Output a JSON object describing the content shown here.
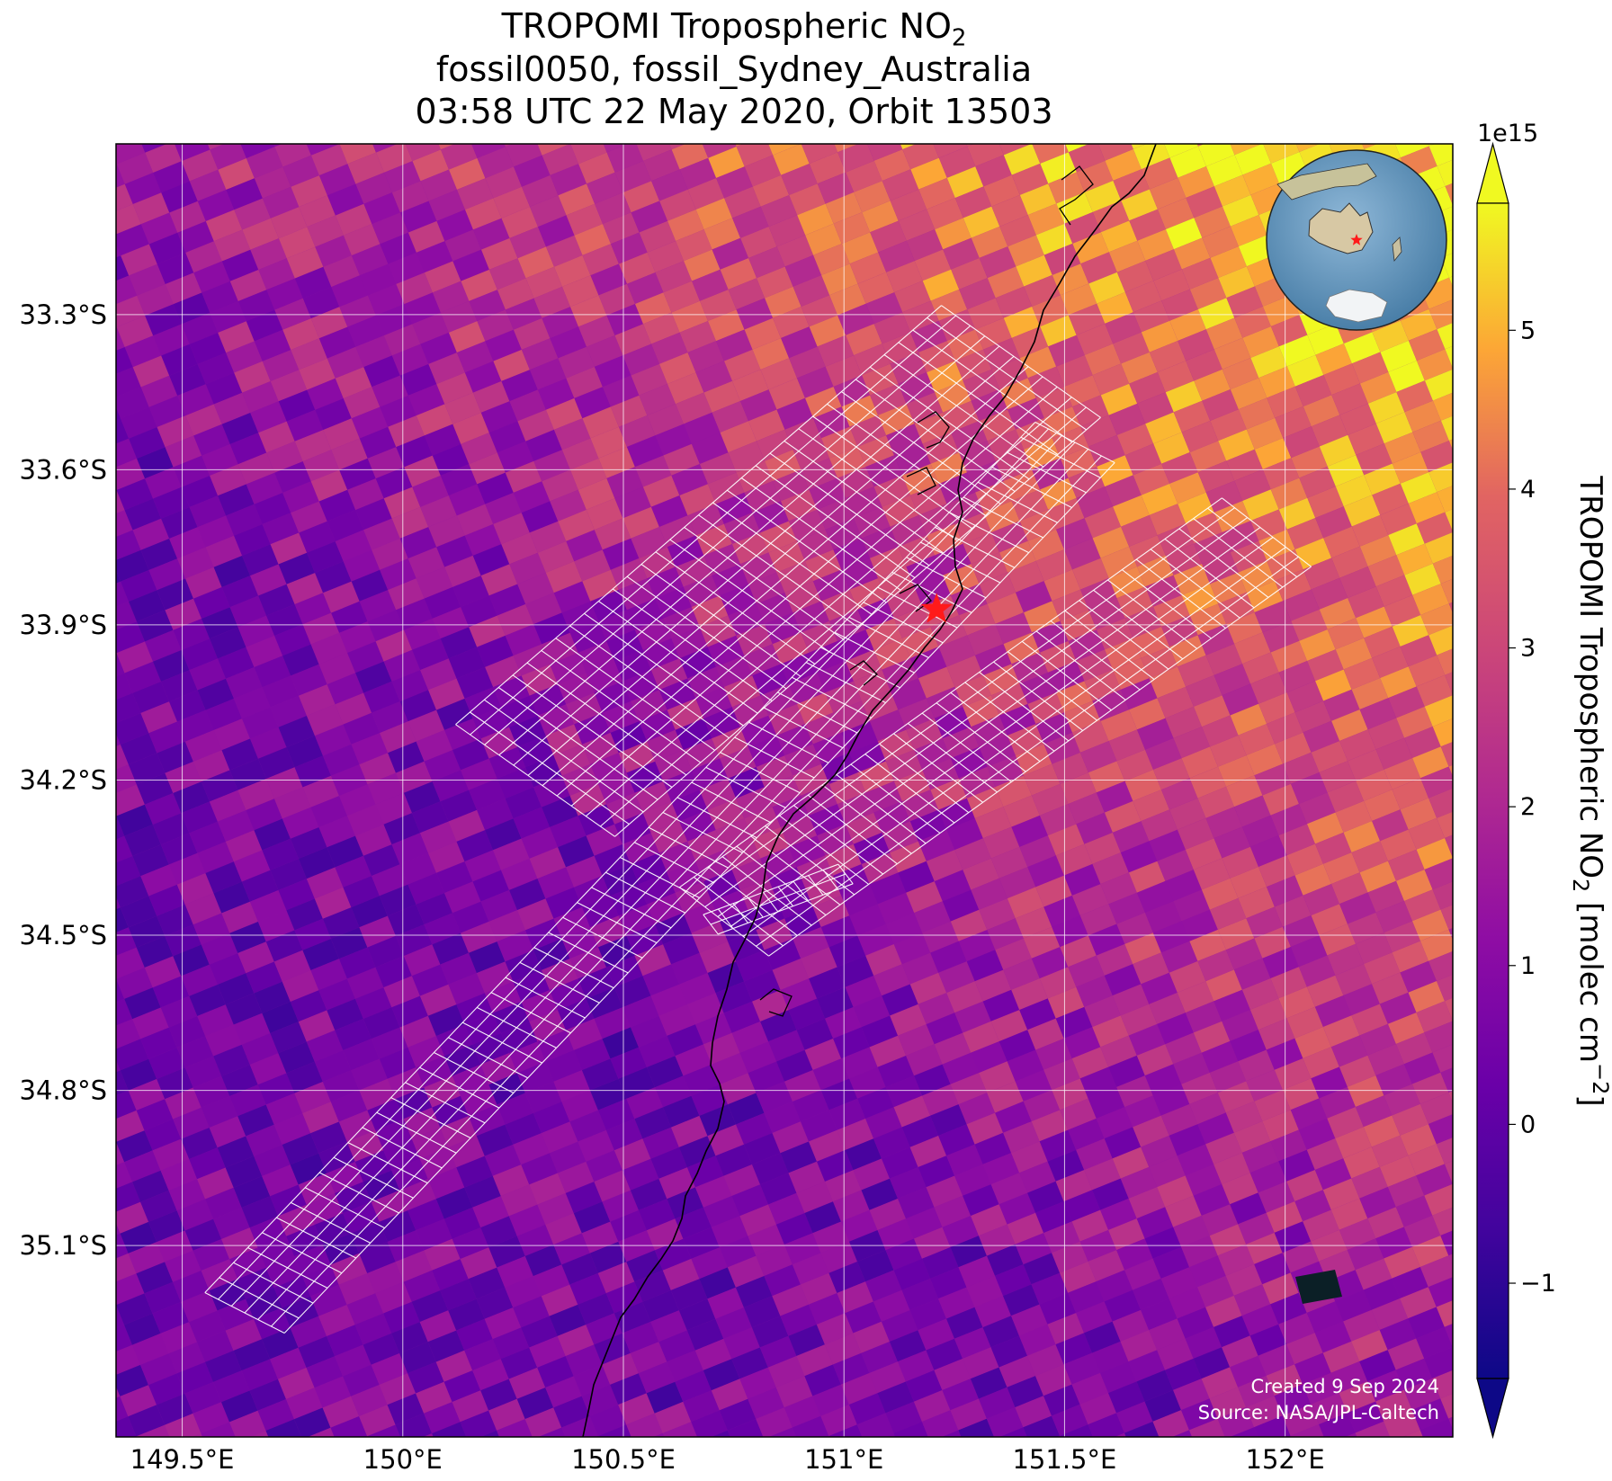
{
  "title": {
    "line1": "TROPOMI Tropospheric NO",
    "line1_sub": "2",
    "line2": "fossil0050, fossil_Sydney_Australia",
    "line3": "03:58 UTC 22 May 2020, Orbit 13503"
  },
  "map": {
    "lon_range": [
      149.35,
      152.38
    ],
    "lat_range": [
      -35.47,
      -32.97
    ],
    "lon_ticks": [
      149.5,
      150.0,
      150.5,
      151.0,
      151.5,
      152.0
    ],
    "lon_tick_labels": [
      "149.5°E",
      "150°E",
      "150.5°E",
      "151°E",
      "151.5°E",
      "152°E"
    ],
    "lat_ticks": [
      -33.3,
      -33.6,
      -33.9,
      -34.2,
      -34.5,
      -34.8,
      -35.1
    ],
    "lat_tick_labels": [
      "33.3°S",
      "33.6°S",
      "33.9°S",
      "34.2°S",
      "34.5°S",
      "34.8°S",
      "35.1°S"
    ],
    "gridlines": true,
    "target_marker": {
      "lon": 151.21,
      "lat": -33.87,
      "color": "#ff1a1a"
    },
    "inset_globe": {
      "placement": "top-right",
      "marker_color": "#ff1a1a"
    },
    "no2_field": {
      "min": -1.6,
      "max": 5.8,
      "trend": "higher toward north-east, lower toward south-west"
    }
  },
  "colorbar": {
    "label_main": "TROPOMI Tropospheric NO",
    "label_sub": "2",
    "label_unit": " [molec cm",
    "label_exp": "−2",
    "label_end": "]",
    "exponent": "1e15",
    "ticks": [
      -1,
      0,
      1,
      2,
      3,
      4,
      5
    ],
    "tick_labels": [
      "−1",
      "0",
      "1",
      "2",
      "3",
      "4",
      "5"
    ],
    "vmin": -1.6,
    "vmax": 5.8,
    "colormap": "plasma"
  },
  "credit": {
    "line1": "Created 9 Sep 2024",
    "line2": "Source: NASA/JPL-Caltech"
  }
}
